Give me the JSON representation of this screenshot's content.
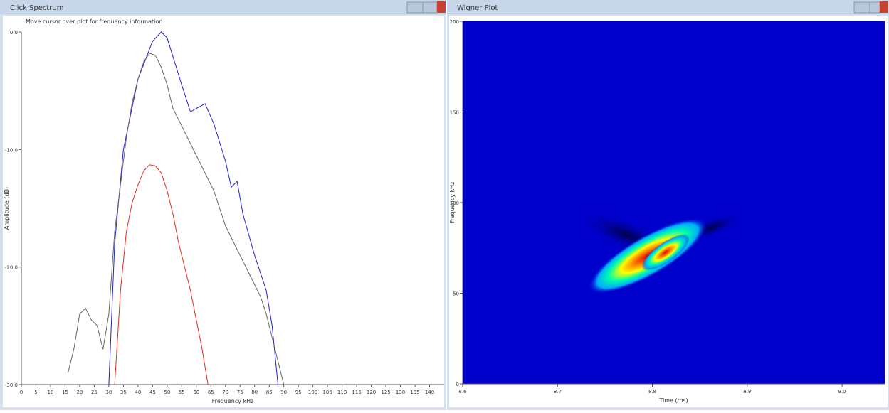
{
  "windows": [
    {
      "title": "Click Spectrum",
      "hint": "Move cursor over plot for frequency information"
    },
    {
      "title": "Wigner Plot"
    }
  ],
  "chart_data": [
    {
      "type": "line",
      "y_label": "Amplitude (dB)",
      "x_label": "Frequency kHz",
      "xlim": [
        0,
        145
      ],
      "xticks": [
        0,
        5,
        10,
        15,
        20,
        25,
        30,
        35,
        40,
        45,
        50,
        55,
        60,
        65,
        70,
        75,
        80,
        85,
        90,
        95,
        100,
        105,
        110,
        115,
        120,
        125,
        130,
        135,
        140
      ],
      "ylim": [
        -30,
        0
      ],
      "yticks": [
        {
          "value": 0,
          "label": "0.0"
        },
        {
          "value": -10,
          "label": "-10.0"
        },
        {
          "value": -20,
          "label": "-20.0"
        },
        {
          "value": -30,
          "label": "-30.0"
        }
      ],
      "series": [
        {
          "color": "#2222cc",
          "x": [
            30,
            32,
            35,
            40,
            45,
            48,
            50,
            55,
            58,
            60,
            63,
            66,
            70,
            72,
            74,
            76,
            80,
            84,
            86,
            88
          ],
          "values": [
            -30,
            -18,
            -10,
            -4,
            -0.8,
            0,
            -0.5,
            -4.5,
            -6.8,
            -6.5,
            -6.1,
            -7.8,
            -11,
            -13.2,
            -12.7,
            -15.5,
            -19,
            -22,
            -25,
            -30
          ]
        },
        {
          "color": "#666666",
          "x": [
            16,
            18,
            20,
            22,
            24,
            26,
            28,
            30,
            32,
            34,
            36,
            38,
            40,
            42,
            44,
            46,
            48,
            50,
            52,
            54,
            56,
            58,
            60,
            62,
            64,
            66,
            68,
            70,
            72,
            74,
            76,
            78,
            80,
            82,
            84,
            86,
            88,
            90
          ],
          "values": [
            -29,
            -27,
            -24,
            -23.5,
            -24.5,
            -25,
            -27,
            -24,
            -17,
            -13,
            -9,
            -6,
            -4,
            -2.5,
            -1.8,
            -2,
            -3,
            -4.5,
            -6.5,
            -7.5,
            -8.5,
            -9.5,
            -10.5,
            -11.5,
            -12.5,
            -13.5,
            -15,
            -16.5,
            -17.5,
            -18.5,
            -19.5,
            -20.5,
            -21.5,
            -22.5,
            -24,
            -26,
            -28,
            -30
          ]
        },
        {
          "color": "#e03020",
          "x": [
            32,
            34,
            36,
            38,
            40,
            42,
            44,
            46,
            48,
            50,
            52,
            54,
            56,
            58,
            60,
            62,
            64
          ],
          "values": [
            -30,
            -22,
            -17,
            -14.5,
            -13,
            -11.8,
            -11.3,
            -11.4,
            -12,
            -13.5,
            -15.5,
            -18,
            -20,
            -22,
            -24.5,
            -27,
            -30
          ]
        }
      ]
    },
    {
      "type": "heatmap",
      "y_label": "Frequency kHz",
      "x_label": "Time (ms)",
      "xlim": [
        8.6,
        9.045
      ],
      "xticks": [
        8.6,
        8.7,
        8.8,
        8.9,
        {
          "value": 9,
          "label": "9.0"
        }
      ],
      "ylim": [
        0,
        200
      ],
      "yticks": [
        0,
        50,
        100,
        150,
        200
      ]
    }
  ]
}
